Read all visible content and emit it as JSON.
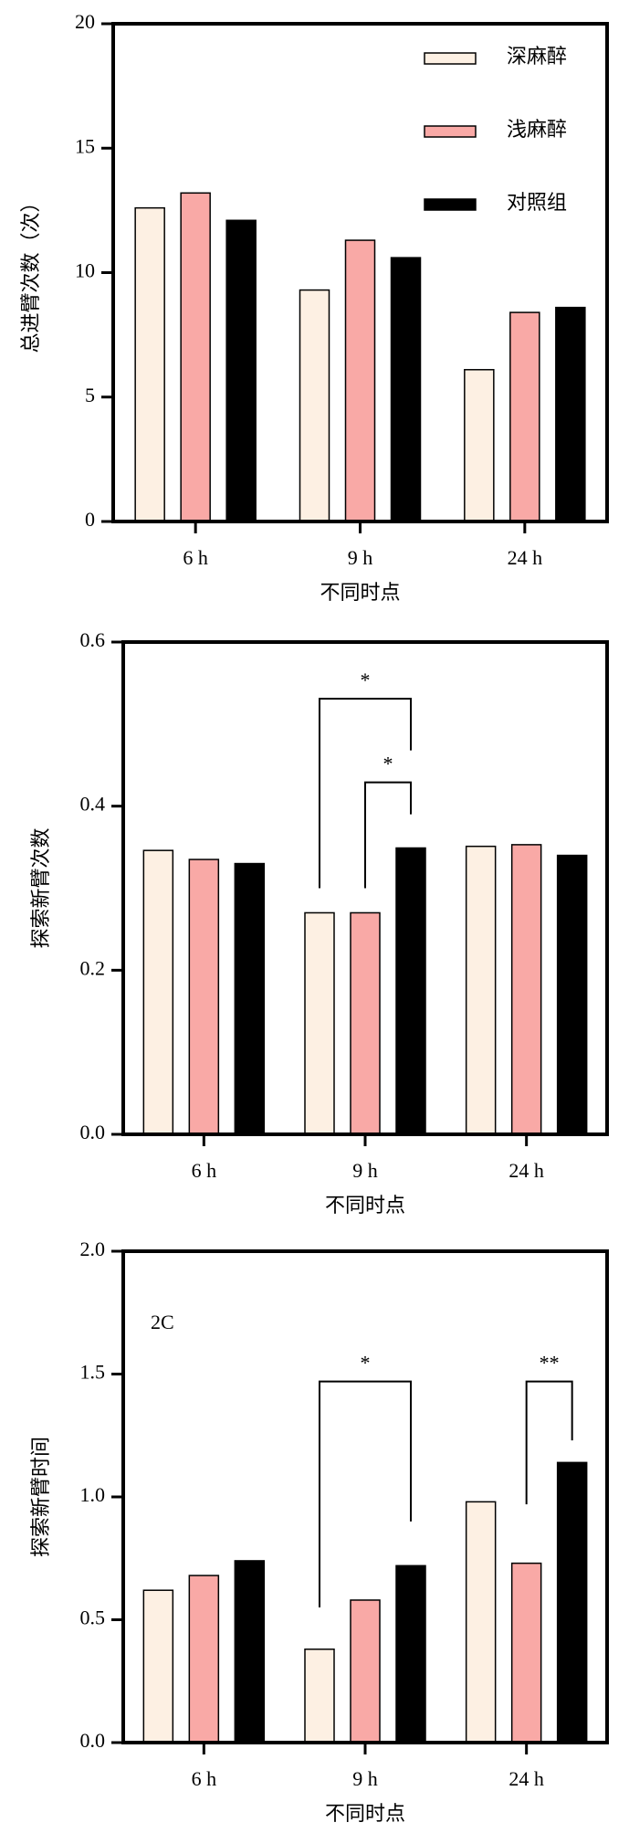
{
  "chart_data": [
    {
      "type": "bar",
      "ylabel": "总进臂次数（次）",
      "xlabel": "不同时点",
      "categories": [
        "6 h",
        "9 h",
        "24 h"
      ],
      "series": [
        {
          "name": "深麻醉",
          "color": "#fdf0e3",
          "values": [
            12.6,
            9.3,
            6.1
          ]
        },
        {
          "name": "浅麻醉",
          "color": "#f9a9a6",
          "values": [
            13.2,
            11.3,
            8.4
          ]
        },
        {
          "name": "对照组",
          "color": "#000000",
          "values": [
            12.1,
            10.6,
            8.6
          ]
        }
      ],
      "ylim": [
        0,
        20
      ],
      "yticks": [
        0,
        5,
        10,
        15,
        20
      ],
      "legend": "upper right"
    },
    {
      "type": "bar",
      "ylabel": "探索新臂次数",
      "xlabel": "不同时点",
      "categories": [
        "6 h",
        "9 h",
        "24 h"
      ],
      "series": [
        {
          "color": "#fdf0e3",
          "values": [
            0.346,
            0.27,
            0.351
          ]
        },
        {
          "color": "#f9a9a6",
          "values": [
            0.335,
            0.27,
            0.353
          ]
        },
        {
          "color": "#000000",
          "values": [
            0.33,
            0.349,
            0.34
          ]
        }
      ],
      "ylim": [
        0,
        0.6
      ],
      "yticks": [
        {
          "value": 0,
          "label": "0.0"
        },
        0.2,
        0.4,
        0.6
      ],
      "annotations": [
        "*",
        "*"
      ]
    },
    {
      "type": "bar",
      "ylabel": "探索新臂时间",
      "xlabel": "不同时点",
      "panel_label": "2C",
      "categories": [
        "6 h",
        "9 h",
        "24 h"
      ],
      "series": [
        {
          "color": "#fdf0e3",
          "values": [
            0.62,
            0.38,
            0.98
          ]
        },
        {
          "color": "#f9a9a6",
          "values": [
            0.68,
            0.58,
            0.73
          ]
        },
        {
          "color": "#000000",
          "values": [
            0.74,
            0.72,
            1.14
          ]
        }
      ],
      "ylim": [
        0,
        2
      ],
      "yticks": [
        {
          "value": 0,
          "label": "0.0"
        },
        0.5,
        {
          "value": 1,
          "label": "1.0"
        },
        1.5,
        {
          "value": 2,
          "label": "2.0"
        }
      ],
      "annotations": [
        "*",
        "**"
      ]
    }
  ]
}
